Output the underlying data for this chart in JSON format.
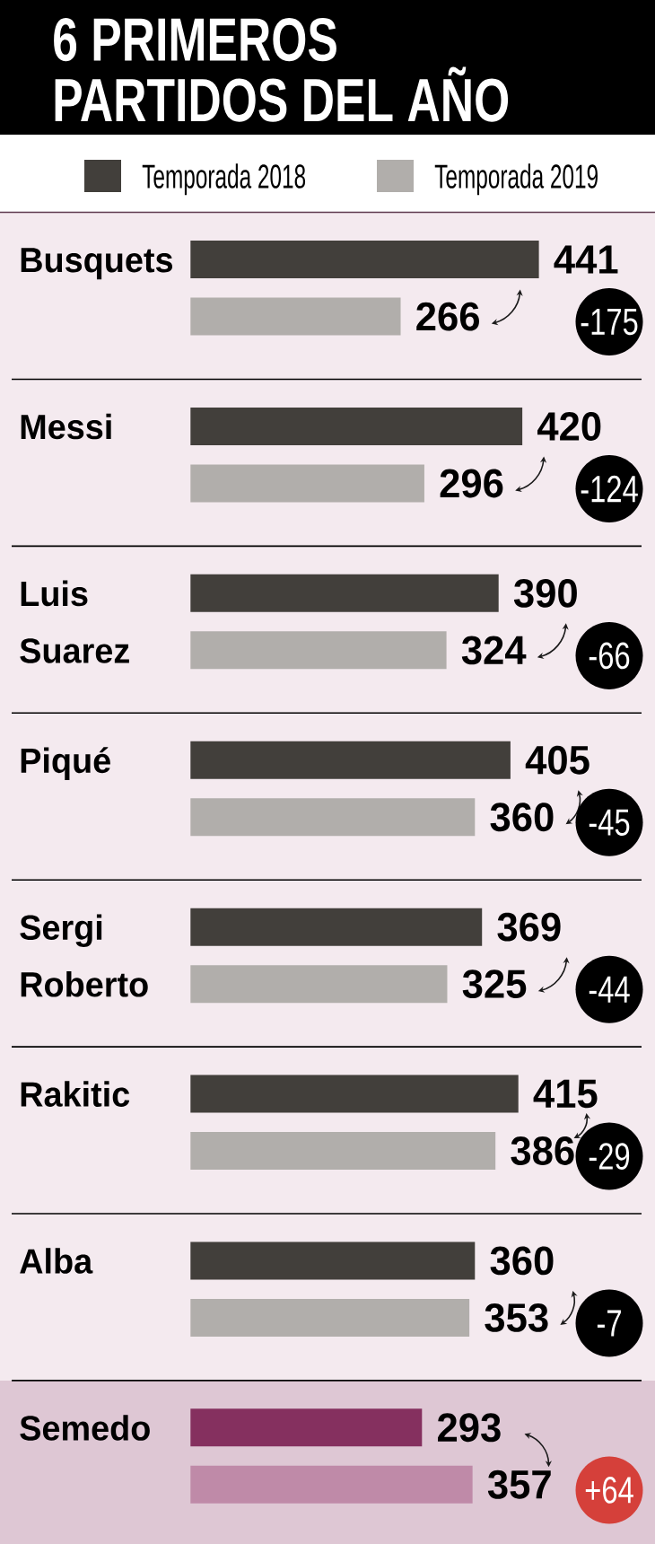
{
  "chart_data": {
    "type": "bar",
    "orientation": "horizontal",
    "title": "6 PRIMEROS PARTIDOS DEL AÑO",
    "categories": [
      "Busquets",
      "Messi",
      "Luis Suarez",
      "Piqué",
      "Sergi Roberto",
      "Rakitic",
      "Alba",
      "Semedo"
    ],
    "series": [
      {
        "name": "Temporada 2018",
        "color": "#423f3b",
        "colors": [
          "#423f3b",
          "#423f3b",
          "#423f3b",
          "#423f3b",
          "#423f3b",
          "#423f3b",
          "#423f3b",
          "#85305f"
        ],
        "values": [
          441,
          420,
          390,
          405,
          369,
          415,
          360,
          293
        ]
      },
      {
        "name": "Temporada 2019",
        "color": "#b1aeab",
        "colors": [
          "#b1aeab",
          "#b1aeab",
          "#b1aeab",
          "#b1aeab",
          "#b1aeab",
          "#b1aeab",
          "#b1aeab",
          "#bf8aa8"
        ],
        "values": [
          266,
          296,
          324,
          360,
          325,
          386,
          353,
          357
        ]
      }
    ],
    "data_labels": true,
    "legend": "top",
    "annotations": [
      "-175",
      "-124",
      "-66",
      "-45",
      "-44",
      "-29",
      "-7",
      "+64"
    ]
  }
}
